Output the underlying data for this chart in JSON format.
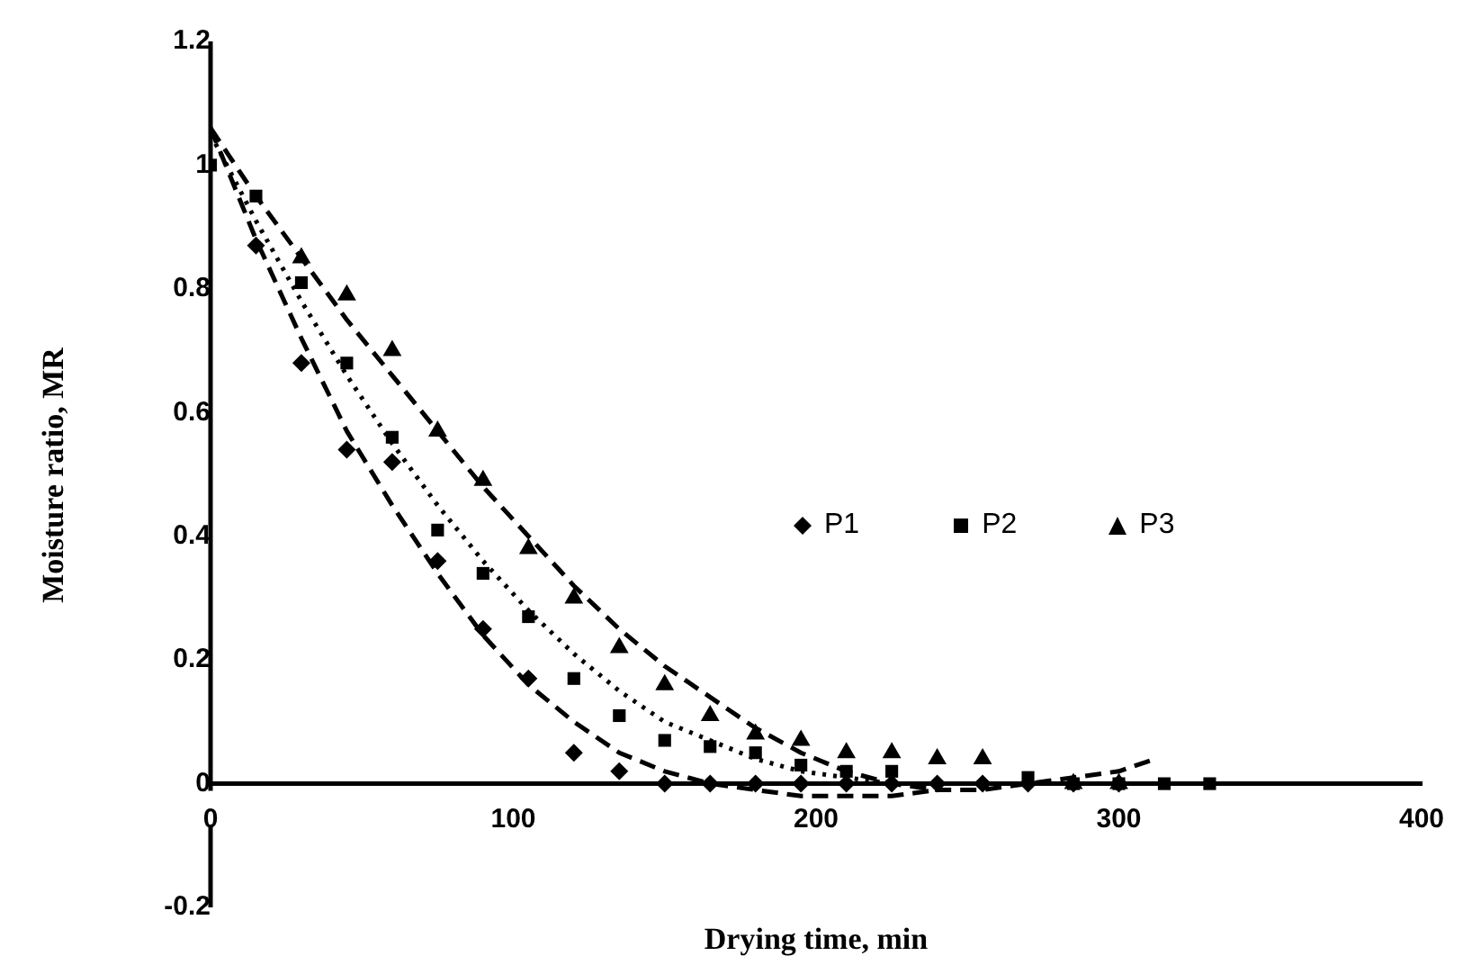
{
  "chart_data": {
    "type": "scatter",
    "xlabel": "Drying time, min",
    "ylabel": "Moisture ratio, MR",
    "xlim": [
      0,
      400
    ],
    "xticks": [
      0,
      100,
      200,
      300,
      400
    ],
    "ylim": [
      -0.2,
      1.2
    ],
    "yticks": [
      -0.2,
      0,
      0.2,
      0.4,
      0.6,
      0.8,
      1,
      1.2
    ],
    "grid": false,
    "legend": "right",
    "x": [
      0,
      15,
      30,
      45,
      60,
      75,
      90,
      105,
      120,
      135,
      150,
      165,
      180,
      195,
      210,
      225,
      240,
      255,
      270,
      285,
      300,
      315,
      330
    ],
    "series": [
      {
        "name": "P1",
        "color": "#000000",
        "marker": "diamond",
        "values": [
          null,
          0.87,
          0.68,
          0.54,
          0.52,
          0.36,
          0.25,
          0.17,
          0.05,
          0.02,
          0,
          0,
          0,
          0,
          0,
          0,
          0,
          0,
          0,
          0,
          0,
          null,
          null
        ]
      },
      {
        "name": "P2",
        "color": "#000000",
        "marker": "square",
        "values": [
          1.0,
          0.95,
          0.81,
          0.68,
          0.56,
          0.41,
          0.34,
          0.27,
          0.17,
          0.11,
          0.07,
          0.06,
          0.05,
          0.03,
          0.02,
          0.02,
          null,
          null,
          0.01,
          0,
          0,
          0,
          0
        ]
      },
      {
        "name": "P3",
        "color": "#000000",
        "marker": "triangle",
        "values": [
          null,
          null,
          0.85,
          0.79,
          0.7,
          0.57,
          0.49,
          0.38,
          0.3,
          0.22,
          0.16,
          0.11,
          0.08,
          0.07,
          0.05,
          0.05,
          0.04,
          0.04,
          null,
          0,
          0,
          null,
          null
        ]
      },
      {
        "type": "line",
        "color": "#000000",
        "marker": "none",
        "line_style": "dashed",
        "x": [
          0,
          15,
          30,
          45,
          60,
          75,
          90,
          105,
          120,
          135,
          150,
          165,
          180,
          195,
          210,
          225,
          240
        ],
        "values": [
          1.06,
          0.88,
          0.72,
          0.57,
          0.45,
          0.34,
          0.24,
          0.16,
          0.1,
          0.05,
          0.02,
          0,
          -0.01,
          -0.02,
          -0.02,
          -0.02,
          -0.01
        ]
      },
      {
        "type": "line",
        "color": "#000000",
        "marker": "none",
        "line_style": "dotted",
        "x": [
          0,
          15,
          30,
          45,
          60,
          75,
          90,
          105,
          120,
          135,
          150,
          165,
          180,
          195,
          210,
          225,
          240,
          255,
          270
        ],
        "values": [
          1.05,
          0.91,
          0.78,
          0.66,
          0.55,
          0.45,
          0.36,
          0.28,
          0.21,
          0.15,
          0.1,
          0.07,
          0.04,
          0.02,
          0.01,
          0,
          0,
          0,
          0
        ]
      },
      {
        "type": "line",
        "color": "#000000",
        "marker": "none",
        "line_style": "dashed",
        "x": [
          0,
          15,
          30,
          45,
          60,
          75,
          90,
          105,
          120,
          135,
          150,
          165,
          180,
          195,
          210,
          225,
          240,
          255,
          270,
          285,
          300,
          312
        ],
        "values": [
          1.06,
          0.95,
          0.85,
          0.75,
          0.66,
          0.57,
          0.48,
          0.4,
          0.32,
          0.25,
          0.19,
          0.14,
          0.09,
          0.05,
          0.02,
          0,
          -0.01,
          -0.01,
          0,
          0.01,
          0.02,
          0.04
        ]
      }
    ]
  }
}
